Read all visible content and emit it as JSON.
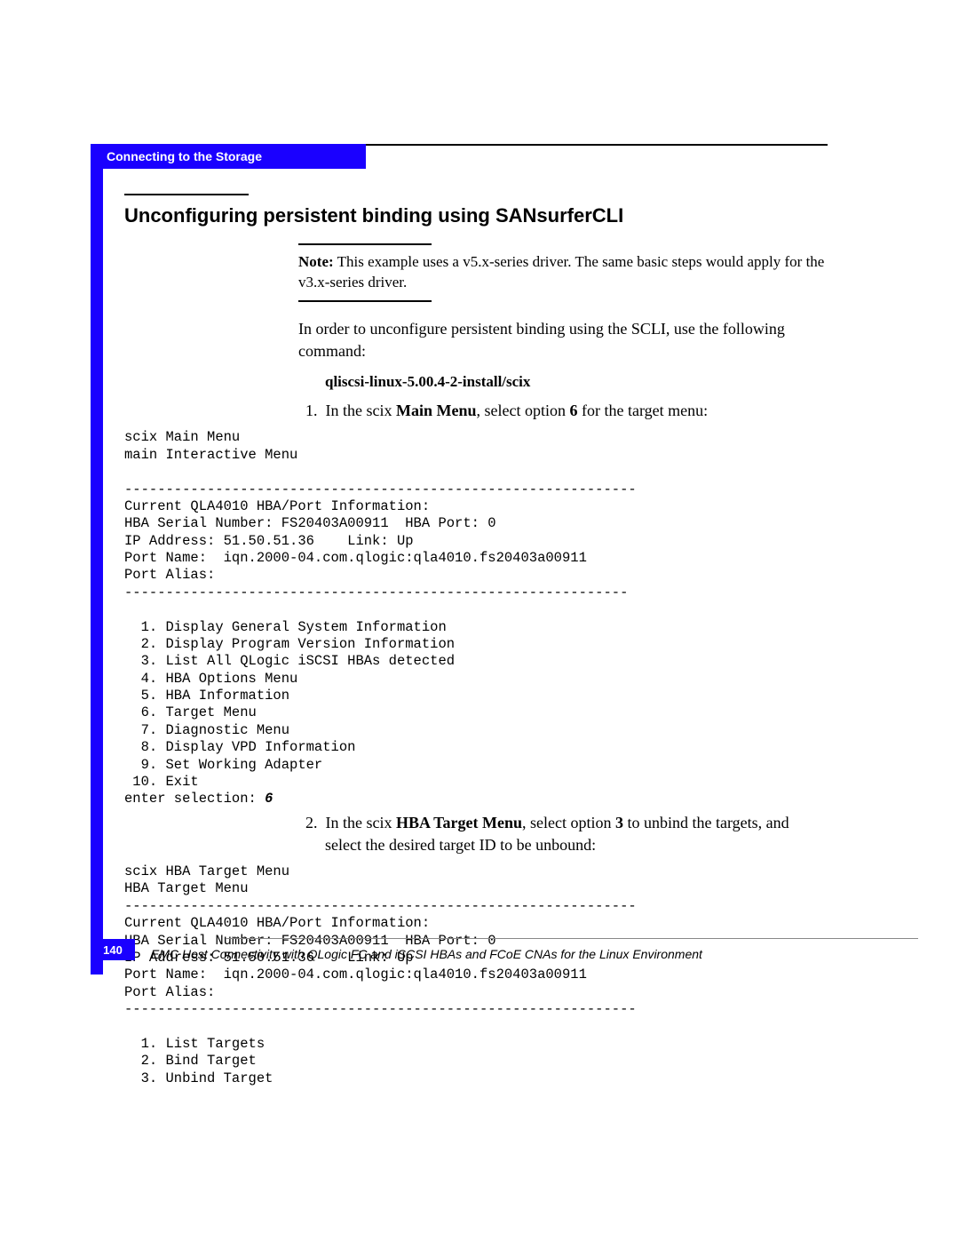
{
  "header": {
    "tab_label": "Connecting to the Storage",
    "tab_bg": "#1a00ff",
    "tab_fg": "#ffffff"
  },
  "section": {
    "title": "Unconfiguring persistent binding using SANsurferCLI"
  },
  "note": {
    "label": "Note:",
    "text": " This example uses a v5.x-series driver. The same basic steps would apply for the v3.x-series driver."
  },
  "intro": "In order to unconfigure persistent binding using the SCLI, use the following command:",
  "command": "qliscsi-linux-5.00.4-2-install/scix",
  "step1": {
    "num": "1.",
    "pre": "In the scix ",
    "b1": "Main Menu",
    "mid": ", select option ",
    "b2": "6",
    "post": " for the target menu:"
  },
  "terminal1": "scix Main Menu\nmain Interactive Menu\n\n--------------------------------------------------------------\nCurrent QLA4010 HBA/Port Information:\nHBA Serial Number: FS20403A00911  HBA Port: 0\nIP Address: 51.50.51.36    Link: Up\nPort Name:  iqn.2000-04.com.qlogic:qla4010.fs20403a00911\nPort Alias:\n-------------------------------------------------------------\n\n  1. Display General System Information\n  2. Display Program Version Information\n  3. List All QLogic iSCSI HBAs detected\n  4. HBA Options Menu\n  5. HBA Information\n  6. Target Menu\n  7. Diagnostic Menu\n  8. Display VPD Information\n  9. Set Working Adapter\n 10. Exit\nenter selection: ",
  "terminal1_input": "6",
  "step2": {
    "num": "2.",
    "pre": "In the scix ",
    "b1": "HBA Target Menu",
    "mid": ", select option ",
    "b2": "3",
    "post": " to unbind the targets, and select the desired target ID to be unbound:"
  },
  "terminal2": "scix HBA Target Menu\nHBA Target Menu\n--------------------------------------------------------------\nCurrent QLA4010 HBA/Port Information:\nHBA Serial Number: FS20403A00911  HBA Port: 0\nIP Address: 51.50.51.36    Link: Up\nPort Name:  iqn.2000-04.com.qlogic:qla4010.fs20403a00911\nPort Alias:\n--------------------------------------------------------------\n\n  1. List Targets\n  2. Bind Target\n  3. Unbind Target",
  "footer": {
    "page_number": "140",
    "text": "EMC Host Connectivity with QLogic FC and iSCSI HBAs and FCoE CNAs for the Linux Environment"
  },
  "colors": {
    "accent": "#1a00ff",
    "text": "#000000",
    "bg": "#ffffff"
  },
  "typography": {
    "body_family": "Georgia, Times New Roman, serif",
    "mono_family": "Courier New, monospace",
    "sans_family": "Arial, Helvetica, sans-serif",
    "title_size_pt": 22,
    "body_size_pt": 18,
    "mono_size_pt": 15.5
  }
}
